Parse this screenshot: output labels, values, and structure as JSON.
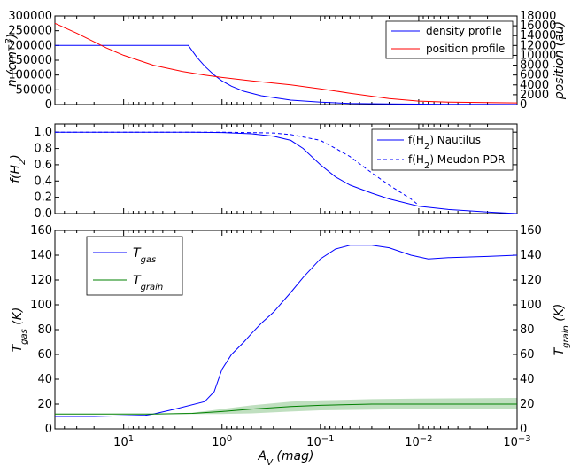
{
  "chart_data": [
    {
      "type": "line",
      "ylabel": "n (cm^-3)",
      "y2label": "position (au)",
      "xscale": "log-reversed",
      "xlim": [
        50,
        0.001
      ],
      "ylim": [
        0,
        300000
      ],
      "y2lim": [
        0,
        18000
      ],
      "yticks": [
        "0",
        "50000",
        "100000",
        "150000",
        "200000",
        "250000",
        "300000"
      ],
      "y2ticks": [
        "0",
        "2000",
        "4000",
        "6000",
        "8000",
        "10000",
        "12000",
        "14000",
        "16000",
        "18000"
      ],
      "legend": "top-right",
      "series": [
        {
          "name": "density profile",
          "color": "#0000ff",
          "axis": "left",
          "x": [
            50,
            10,
            5,
            3,
            2.2,
            1.8,
            1.5,
            1.2,
            1.0,
            0.8,
            0.6,
            0.4,
            0.2,
            0.1,
            0.05,
            0.02,
            0.01,
            0.005,
            0.002,
            0.001
          ],
          "y": [
            200000,
            200000,
            200000,
            200000,
            200000,
            160000,
            130000,
            100000,
            80000,
            62000,
            45000,
            30000,
            15000,
            8000,
            4000,
            2000,
            1500,
            1000,
            600,
            400
          ]
        },
        {
          "name": "position profile",
          "color": "#ff0000",
          "axis": "right",
          "x": [
            50,
            30,
            15,
            10,
            5,
            2.5,
            1.5,
            1.0,
            0.5,
            0.2,
            0.1,
            0.05,
            0.02,
            0.01,
            0.005,
            0.002,
            0.001
          ],
          "y": [
            16500,
            14500,
            11500,
            10000,
            8000,
            6700,
            6000,
            5500,
            4800,
            4000,
            3200,
            2300,
            1200,
            700,
            500,
            400,
            350
          ]
        }
      ]
    },
    {
      "type": "line",
      "ylabel": "f(H2)",
      "xscale": "log-reversed",
      "xlim": [
        50,
        0.001
      ],
      "ylim": [
        0,
        1.1
      ],
      "yticks": [
        "0.0",
        "0.2",
        "0.4",
        "0.6",
        "0.8",
        "1.0"
      ],
      "legend": "top-right",
      "series": [
        {
          "name": "f(H2) Nautilus",
          "color": "#0000ff",
          "dash": false,
          "x": [
            50,
            10,
            2,
            1,
            0.5,
            0.3,
            0.2,
            0.15,
            0.1,
            0.07,
            0.05,
            0.03,
            0.02,
            0.01,
            0.005,
            0.002,
            0.001
          ],
          "y": [
            1.0,
            1.0,
            1.0,
            0.995,
            0.98,
            0.95,
            0.9,
            0.8,
            0.6,
            0.45,
            0.35,
            0.25,
            0.18,
            0.09,
            0.05,
            0.02,
            0.0
          ]
        },
        {
          "name": "f(H2) Meudon PDR",
          "color": "#0000ff",
          "dash": true,
          "x": [
            50,
            10,
            1,
            0.3,
            0.2,
            0.1,
            0.07,
            0.05,
            0.03,
            0.02,
            0.012,
            0.01
          ],
          "y": [
            1.0,
            1.0,
            1.0,
            0.99,
            0.97,
            0.9,
            0.8,
            0.7,
            0.5,
            0.35,
            0.18,
            0.1
          ]
        }
      ]
    },
    {
      "type": "line",
      "ylabel": "T_gas (K)",
      "y2label": "T_grain (K)",
      "xlabel": "A_V (mag)",
      "xscale": "log-reversed",
      "xlim": [
        50,
        0.001
      ],
      "ylim": [
        0,
        160
      ],
      "yticks": [
        "0",
        "20",
        "40",
        "60",
        "80",
        "100",
        "120",
        "140",
        "160"
      ],
      "y2ticks": [
        "0",
        "20",
        "40",
        "60",
        "80",
        "100",
        "120",
        "140",
        "160"
      ],
      "xticks": [
        "10^1",
        "10^0",
        "10^-1",
        "10^-2",
        "10^-3"
      ],
      "legend": "top-left",
      "series": [
        {
          "name": "T_gas",
          "color": "#0000ff",
          "x": [
            50,
            20,
            6,
            5,
            3,
            1.5,
            1.2,
            1.0,
            0.8,
            0.6,
            0.5,
            0.4,
            0.3,
            0.2,
            0.15,
            0.1,
            0.07,
            0.05,
            0.03,
            0.02,
            0.012,
            0.008,
            0.005,
            0.002,
            0.001
          ],
          "y": [
            10,
            10,
            11,
            12,
            16,
            22,
            30,
            48,
            60,
            70,
            77,
            85,
            94,
            110,
            122,
            137,
            145,
            148,
            148,
            146,
            140,
            137,
            138,
            139,
            140
          ]
        },
        {
          "name": "T_grain",
          "color": "#008000",
          "x": [
            50,
            5,
            2,
            1,
            0.5,
            0.2,
            0.1,
            0.03,
            0.01,
            0.001
          ],
          "y": [
            12,
            12,
            12.5,
            14,
            16,
            18,
            19,
            20,
            20,
            20
          ],
          "band_low": [
            12,
            12,
            12,
            12,
            12.5,
            14,
            15,
            15.5,
            16,
            16
          ],
          "band_high": [
            12,
            12,
            13,
            16,
            19,
            22,
            23,
            24,
            24.5,
            25
          ]
        }
      ]
    }
  ]
}
